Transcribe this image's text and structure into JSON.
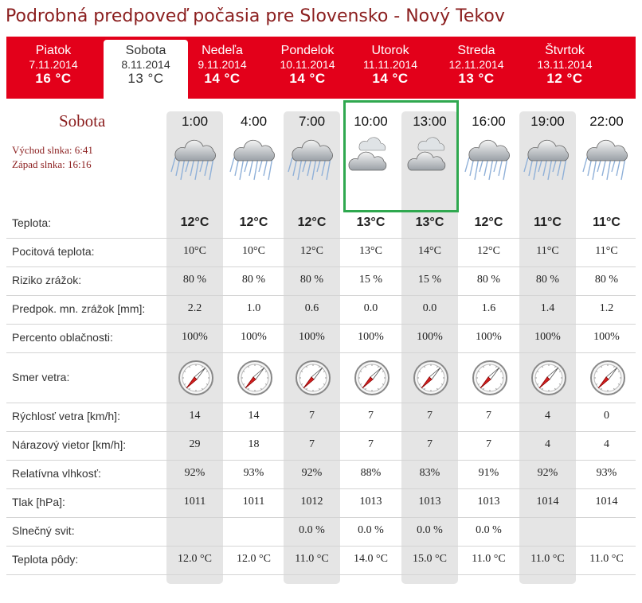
{
  "page_title": "Podrobná predpoveď počasia pre Slovensko - Nový Tekov",
  "tabs": [
    {
      "name": "Piatok",
      "date": "7.11.2014",
      "temp": "16 °C",
      "active": false
    },
    {
      "name": "Sobota",
      "date": "8.11.2014",
      "temp": "13 °C",
      "active": true
    },
    {
      "name": "Nedeľa",
      "date": "9.11.2014",
      "temp": "14 °C",
      "active": false
    },
    {
      "name": "Pondelok",
      "date": "10.11.2014",
      "temp": "14 °C",
      "active": false
    },
    {
      "name": "Utorok",
      "date": "11.11.2014",
      "temp": "14 °C",
      "active": false
    },
    {
      "name": "Streda",
      "date": "12.11.2014",
      "temp": "13 °C",
      "active": false
    },
    {
      "name": "Štvrtok",
      "date": "13.11.2014",
      "temp": "12 °C",
      "active": false
    }
  ],
  "day": {
    "name": "Sobota",
    "sunrise": "Východ slnka: 6:41",
    "sunset": "Západ slnka: 16:16"
  },
  "hours": [
    "1:00",
    "4:00",
    "7:00",
    "10:00",
    "13:00",
    "16:00",
    "19:00",
    "22:00"
  ],
  "weather_icons": [
    "rain-cloud-icon",
    "rain-cloud-icon",
    "rain-cloud-icon",
    "cloud-icon",
    "cloud-icon",
    "rain-cloud-icon",
    "rain-cloud-icon",
    "rain-cloud-icon"
  ],
  "rows": [
    {
      "label": "Teplota:",
      "values": [
        "12°C",
        "12°C",
        "12°C",
        "13°C",
        "13°C",
        "12°C",
        "11°C",
        "11°C"
      ],
      "bold": true
    },
    {
      "label": "Pocitová teplota:",
      "values": [
        "10°C",
        "10°C",
        "12°C",
        "13°C",
        "14°C",
        "12°C",
        "11°C",
        "11°C"
      ]
    },
    {
      "label": "Riziko zrážok:",
      "values": [
        "80 %",
        "80 %",
        "80 %",
        "15 %",
        "15 %",
        "80 %",
        "80 %",
        "80 %"
      ]
    },
    {
      "label": "Predpok. mn. zrážok [mm]:",
      "values": [
        "2.2",
        "1.0",
        "0.6",
        "0.0",
        "0.0",
        "1.6",
        "1.4",
        "1.2"
      ]
    },
    {
      "label": "Percento oblačnosti:",
      "values": [
        "100%",
        "100%",
        "100%",
        "100%",
        "100%",
        "100%",
        "100%",
        "100%"
      ]
    },
    {
      "label": "Smer vetra:",
      "compass": true
    },
    {
      "label": "Rýchlosť vetra [km/h]:",
      "values": [
        "14",
        "14",
        "7",
        "7",
        "7",
        "7",
        "4",
        "0"
      ]
    },
    {
      "label": "Nárazový vietor [km/h]:",
      "values": [
        "29",
        "18",
        "7",
        "7",
        "7",
        "7",
        "4",
        "4"
      ]
    },
    {
      "label": "Relatívna vlhkosť:",
      "values": [
        "92%",
        "93%",
        "92%",
        "88%",
        "83%",
        "91%",
        "92%",
        "93%"
      ]
    },
    {
      "label": "Tlak [hPa]:",
      "values": [
        "1011",
        "1011",
        "1012",
        "1013",
        "1013",
        "1013",
        "1014",
        "1014"
      ]
    },
    {
      "label": "Slnečný svit:",
      "values": [
        "",
        "",
        "0.0 %",
        "0.0 %",
        "0.0 %",
        "0.0 %",
        "",
        ""
      ]
    },
    {
      "label": "Teplota pôdy:",
      "values": [
        "12.0 °C",
        "12.0 °C",
        "11.0 °C",
        "14.0 °C",
        "15.0 °C",
        "11.0 °C",
        "11.0 °C",
        "11.0 °C"
      ]
    }
  ],
  "wind_direction_icon": "wind-compass-icon",
  "colors": {
    "accent": "#e3001a",
    "title": "#8b1e1e",
    "highlight": "#2fa84f"
  }
}
